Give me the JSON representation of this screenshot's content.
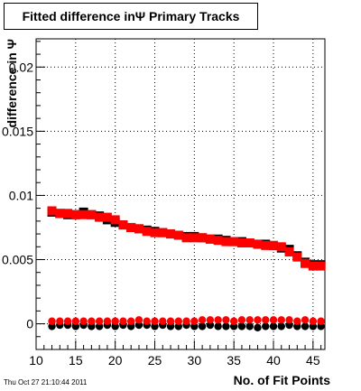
{
  "title": "Fitted difference inΨ  Primary Tracks",
  "footer": "Thu Oct 27 21:10:44 2011",
  "colors": {
    "red": "#ff0000",
    "black": "#000000"
  },
  "chart_data": {
    "type": "scatter",
    "title": "Fitted difference inΨ  Primary Tracks",
    "xlabel": "No. of Fit Points",
    "ylabel": "difference in Ψ",
    "xlim": [
      10,
      46.5
    ],
    "ylim": [
      -0.002,
      0.0222
    ],
    "grid": true,
    "x_ticks": [
      "10",
      "15",
      "20",
      "25",
      "30",
      "35",
      "40",
      "45"
    ],
    "y_ticks": [
      "0",
      "0.005",
      "0.01",
      "0.015",
      "0.02"
    ],
    "x": [
      12,
      13,
      14,
      15,
      16,
      17,
      18,
      19,
      20,
      21,
      22,
      23,
      24,
      25,
      26,
      27,
      28,
      29,
      30,
      31,
      32,
      33,
      34,
      35,
      36,
      37,
      38,
      39,
      40,
      41,
      42,
      43,
      44,
      45,
      46
    ],
    "series": [
      {
        "color": "#000000",
        "marker": "square",
        "values": [
          0.0087,
          0.0086,
          0.0085,
          0.0085,
          0.0087,
          0.0085,
          0.0084,
          0.0081,
          0.0079,
          0.0077,
          0.0075,
          0.0074,
          0.0073,
          0.0072,
          0.0071,
          0.007,
          0.0069,
          0.0068,
          0.0068,
          0.0067,
          0.0066,
          0.0066,
          0.0065,
          0.0064,
          0.0064,
          0.0063,
          0.0062,
          0.0062,
          0.0061,
          0.0059,
          0.0058,
          0.0053,
          0.0048,
          0.0046,
          0.0046
        ]
      },
      {
        "color": "#ff0000",
        "marker": "square",
        "values": [
          0.0088,
          0.0086,
          0.0086,
          0.0085,
          0.0085,
          0.0085,
          0.0083,
          0.0083,
          0.0081,
          0.0077,
          0.0075,
          0.0074,
          0.0072,
          0.0071,
          0.0071,
          0.007,
          0.0069,
          0.0067,
          0.0067,
          0.0067,
          0.0066,
          0.0065,
          0.0064,
          0.0064,
          0.0063,
          0.0063,
          0.0062,
          0.0061,
          0.0061,
          0.006,
          0.0056,
          0.0052,
          0.0047,
          0.0045,
          0.0045
        ]
      },
      {
        "color": "#000000",
        "marker": "circle",
        "values": [
          -0.0002,
          -0.0001,
          -0.0001,
          -0.0002,
          -0.0001,
          -0.0002,
          -0.0002,
          -0.0001,
          -0.0002,
          -0.0001,
          -0.0002,
          -0.0001,
          -0.0001,
          -0.0002,
          -0.0001,
          -0.0002,
          -0.0002,
          -0.0001,
          -0.0002,
          -0.0002,
          -0.0001,
          -0.0002,
          -0.0002,
          -0.0002,
          -0.0002,
          -0.0002,
          -0.0003,
          -0.0002,
          -0.0002,
          -0.0002,
          -0.0001,
          -0.0002,
          -0.0002,
          -0.0002,
          -0.0002
        ]
      },
      {
        "color": "#ff0000",
        "marker": "circle",
        "values": [
          0.0002,
          0.0002,
          0.0002,
          0.0002,
          0.0002,
          0.0002,
          0.0002,
          0.0002,
          0.0002,
          0.0002,
          0.0002,
          0.0003,
          0.0002,
          0.0002,
          0.0002,
          0.0002,
          0.0002,
          0.0002,
          0.0002,
          0.0003,
          0.0003,
          0.0003,
          0.0003,
          0.0002,
          0.0003,
          0.0003,
          0.0003,
          0.0003,
          0.0003,
          0.0003,
          0.0003,
          0.0002,
          0.0003,
          0.0002,
          0.0002
        ]
      }
    ]
  }
}
